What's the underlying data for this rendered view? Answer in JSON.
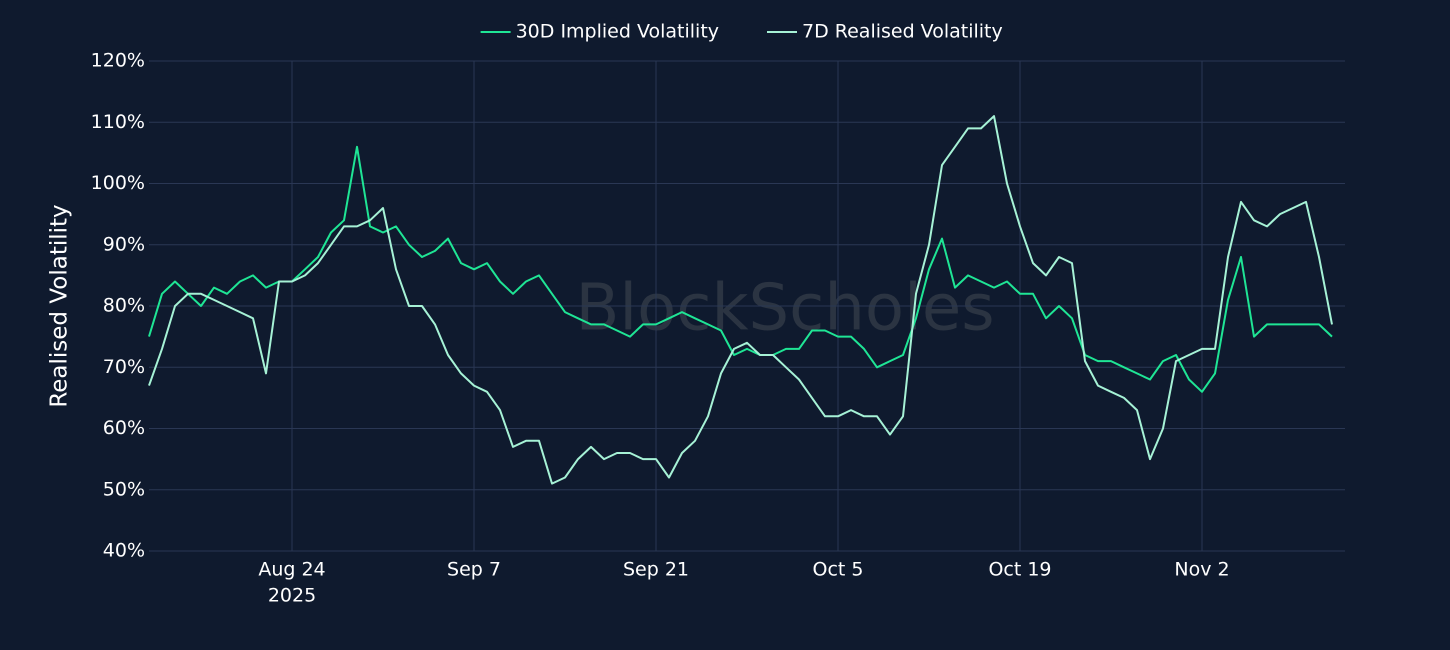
{
  "chart_data": {
    "type": "line",
    "y_axis_label": "Realised Volatility",
    "watermark": "BlockScholes",
    "legend_position": "top-center",
    "grid": true,
    "x": [
      "2025-08-13",
      "2025-08-14",
      "2025-08-15",
      "2025-08-16",
      "2025-08-17",
      "2025-08-18",
      "2025-08-19",
      "2025-08-20",
      "2025-08-21",
      "2025-08-22",
      "2025-08-23",
      "2025-08-24",
      "2025-08-25",
      "2025-08-26",
      "2025-08-27",
      "2025-08-28",
      "2025-08-29",
      "2025-08-30",
      "2025-08-31",
      "2025-09-01",
      "2025-09-02",
      "2025-09-03",
      "2025-09-04",
      "2025-09-05",
      "2025-09-06",
      "2025-09-07",
      "2025-09-08",
      "2025-09-09",
      "2025-09-10",
      "2025-09-11",
      "2025-09-12",
      "2025-09-13",
      "2025-09-14",
      "2025-09-15",
      "2025-09-16",
      "2025-09-17",
      "2025-09-18",
      "2025-09-19",
      "2025-09-20",
      "2025-09-21",
      "2025-09-22",
      "2025-09-23",
      "2025-09-24",
      "2025-09-25",
      "2025-09-26",
      "2025-09-27",
      "2025-09-28",
      "2025-09-29",
      "2025-09-30",
      "2025-10-01",
      "2025-10-02",
      "2025-10-03",
      "2025-10-04",
      "2025-10-05",
      "2025-10-06",
      "2025-10-07",
      "2025-10-08",
      "2025-10-09",
      "2025-10-10",
      "2025-10-11",
      "2025-10-12",
      "2025-10-13",
      "2025-10-14",
      "2025-10-15",
      "2025-10-16",
      "2025-10-17",
      "2025-10-18",
      "2025-10-19",
      "2025-10-20",
      "2025-10-21",
      "2025-10-22",
      "2025-10-23",
      "2025-10-24",
      "2025-10-25",
      "2025-10-26",
      "2025-10-27",
      "2025-10-28",
      "2025-10-29",
      "2025-10-30",
      "2025-10-31",
      "2025-11-01",
      "2025-11-02",
      "2025-11-03",
      "2025-11-04",
      "2025-11-05",
      "2025-11-06",
      "2025-11-07",
      "2025-11-08",
      "2025-11-09",
      "2025-11-10",
      "2025-11-11",
      "2025-11-12"
    ],
    "series": [
      {
        "name": "30D Implied Volatility",
        "color": "#1fe595",
        "values": [
          75,
          82,
          84,
          82,
          80,
          83,
          82,
          84,
          85,
          83,
          84,
          84,
          86,
          88,
          92,
          94,
          106,
          93,
          92,
          93,
          90,
          88,
          89,
          91,
          87,
          86,
          87,
          84,
          82,
          84,
          85,
          82,
          79,
          78,
          77,
          77,
          76,
          75,
          77,
          77,
          78,
          79,
          78,
          77,
          76,
          72,
          73,
          72,
          72,
          73,
          73,
          76,
          76,
          75,
          75,
          73,
          70,
          71,
          72,
          78,
          86,
          91,
          83,
          85,
          84,
          83,
          84,
          82,
          82,
          78,
          80,
          78,
          72,
          71,
          71,
          70,
          69,
          68,
          71,
          72,
          68,
          66,
          69,
          81,
          88,
          75,
          77,
          77,
          77,
          77,
          77,
          75
        ]
      },
      {
        "name": "7D Realised Volatility",
        "color": "#a6f2d6",
        "values": [
          67,
          73,
          80,
          82,
          82,
          81,
          80,
          79,
          78,
          69,
          84,
          84,
          85,
          87,
          90,
          93,
          93,
          94,
          96,
          86,
          80,
          80,
          77,
          72,
          69,
          67,
          66,
          63,
          57,
          58,
          58,
          51,
          52,
          55,
          57,
          55,
          56,
          56,
          55,
          55,
          52,
          56,
          58,
          62,
          69,
          73,
          74,
          72,
          72,
          70,
          68,
          65,
          62,
          62,
          63,
          62,
          62,
          59,
          62,
          82,
          90,
          103,
          106,
          109,
          109,
          111,
          100,
          93,
          87,
          85,
          88,
          87,
          71,
          67,
          66,
          65,
          63,
          55,
          60,
          71,
          72,
          73,
          73,
          88,
          97,
          94,
          93,
          95,
          96,
          97,
          88,
          77
        ]
      }
    ],
    "xlim": [
      "2025-08-13",
      "2025-11-13"
    ],
    "xticks": [
      {
        "value": "2025-08-24",
        "label": "Aug 24",
        "year": "2025"
      },
      {
        "value": "2025-09-07",
        "label": "Sep 7"
      },
      {
        "value": "2025-09-21",
        "label": "Sep 21"
      },
      {
        "value": "2025-10-05",
        "label": "Oct 5"
      },
      {
        "value": "2025-10-19",
        "label": "Oct 19"
      },
      {
        "value": "2025-11-02",
        "label": "Nov 2"
      }
    ],
    "ylim": [
      40,
      120
    ],
    "yticks": [
      {
        "value": 40,
        "label": "40%"
      },
      {
        "value": 50,
        "label": "50%"
      },
      {
        "value": 60,
        "label": "60%"
      },
      {
        "value": 70,
        "label": "70%"
      },
      {
        "value": 80,
        "label": "80%"
      },
      {
        "value": 90,
        "label": "90%"
      },
      {
        "value": 100,
        "label": "100%"
      },
      {
        "value": 110,
        "label": "110%"
      },
      {
        "value": 120,
        "label": "120%"
      }
    ]
  }
}
